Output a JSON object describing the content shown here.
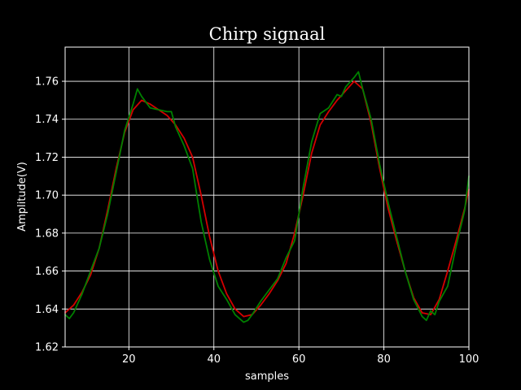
{
  "chart_data": {
    "type": "line",
    "title": "Chirp signaal",
    "xlabel": "samples",
    "ylabel": "Amplitude(V)",
    "xlim": [
      5,
      100
    ],
    "ylim": [
      1.62,
      1.778
    ],
    "xticks": [
      20,
      40,
      60,
      80,
      100
    ],
    "yticks": [
      1.62,
      1.64,
      1.66,
      1.68,
      1.7,
      1.72,
      1.74,
      1.76
    ],
    "ytick_labels": [
      "1.62",
      "1.64",
      "1.66",
      "1.68",
      "1.70",
      "1.72",
      "1.74",
      "1.76"
    ],
    "grid": true,
    "background": "#000000",
    "foreground": "#ffffff",
    "series": [
      {
        "color": "#d40000",
        "x": [
          5,
          7,
          9,
          11,
          13,
          15,
          17,
          19,
          21,
          23,
          25,
          27,
          29,
          31,
          33,
          35,
          37,
          39,
          41,
          43,
          45,
          47,
          49,
          51,
          53,
          55,
          57,
          59,
          61,
          63,
          65,
          67,
          69,
          71,
          73,
          75,
          77,
          79,
          81,
          83,
          85,
          87,
          89,
          91,
          93,
          95,
          97,
          99,
          100
        ],
        "y": [
          1.638,
          1.642,
          1.649,
          1.658,
          1.672,
          1.692,
          1.714,
          1.733,
          1.745,
          1.75,
          1.748,
          1.745,
          1.742,
          1.737,
          1.73,
          1.72,
          1.7,
          1.678,
          1.66,
          1.648,
          1.64,
          1.636,
          1.637,
          1.642,
          1.648,
          1.655,
          1.664,
          1.68,
          1.7,
          1.722,
          1.737,
          1.744,
          1.75,
          1.755,
          1.76,
          1.756,
          1.738,
          1.714,
          1.693,
          1.676,
          1.66,
          1.646,
          1.638,
          1.637,
          1.645,
          1.66,
          1.676,
          1.693,
          1.703
        ]
      },
      {
        "color": "#008000",
        "x": [
          5,
          6,
          7,
          9,
          11,
          13,
          15,
          17,
          19,
          21,
          22,
          23,
          25,
          27,
          29,
          30,
          31,
          33,
          35,
          37,
          39,
          41,
          43,
          45,
          47,
          48,
          49,
          51,
          53,
          55,
          57,
          59,
          61,
          63,
          65,
          67,
          69,
          70,
          71,
          73,
          74,
          75,
          77,
          79,
          81,
          83,
          85,
          87,
          89,
          90,
          91,
          92,
          93,
          95,
          97,
          99,
          100
        ],
        "y": [
          1.637,
          1.635,
          1.638,
          1.648,
          1.66,
          1.672,
          1.69,
          1.712,
          1.734,
          1.748,
          1.756,
          1.752,
          1.746,
          1.745,
          1.744,
          1.744,
          1.736,
          1.726,
          1.714,
          1.686,
          1.666,
          1.652,
          1.645,
          1.637,
          1.633,
          1.634,
          1.637,
          1.644,
          1.65,
          1.656,
          1.667,
          1.676,
          1.704,
          1.728,
          1.743,
          1.746,
          1.753,
          1.752,
          1.757,
          1.762,
          1.765,
          1.756,
          1.74,
          1.716,
          1.696,
          1.678,
          1.66,
          1.645,
          1.636,
          1.634,
          1.639,
          1.637,
          1.644,
          1.652,
          1.673,
          1.692,
          1.71
        ]
      }
    ]
  }
}
